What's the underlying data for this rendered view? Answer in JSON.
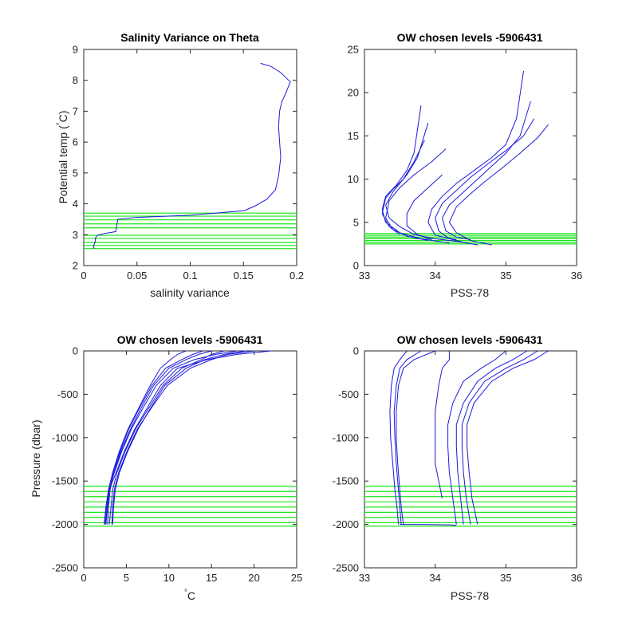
{
  "figure": {
    "line_color": "#1a1adb",
    "level_color": "#19e619"
  },
  "chart_data": [
    {
      "type": "line",
      "title": "Salinity Variance on Theta",
      "xlabel": "salinity variance",
      "ylabel": "Potential temp (°C)",
      "xlim": [
        0,
        0.2
      ],
      "ylim": [
        2,
        9
      ],
      "xticks": [
        "0",
        "0.05",
        "0.1",
        "0.15",
        "0.2"
      ],
      "yticks": [
        "2",
        "3",
        "4",
        "5",
        "6",
        "7",
        "8",
        "9"
      ],
      "series": [
        {
          "x": [
            0.01,
            0.009,
            0.01,
            0.011,
            0.011,
            0.013,
            0.02,
            0.03,
            0.031,
            0.032,
            0.05,
            0.1,
            0.151,
            0.162,
            0.172,
            0.18,
            0.183,
            0.185,
            0.184,
            0.183,
            0.184,
            0.186,
            0.19,
            0.194,
            0.185,
            0.176,
            0.166
          ],
          "y": [
            2.55,
            2.62,
            2.7,
            2.8,
            2.9,
            2.98,
            3.04,
            3.1,
            3.3,
            3.5,
            3.56,
            3.63,
            3.78,
            3.95,
            4.15,
            4.45,
            4.9,
            5.5,
            6.0,
            6.5,
            7.0,
            7.3,
            7.6,
            7.95,
            8.25,
            8.45,
            8.55
          ]
        }
      ],
      "levels": [
        2.55,
        2.65,
        2.75,
        2.88,
        2.98,
        3.22,
        3.35,
        3.48,
        3.6,
        3.7
      ],
      "level_range": [
        0.0,
        0.2
      ]
    },
    {
      "type": "line",
      "title": "OW chosen levels -5906431",
      "xlabel": "PSS-78",
      "ylabel": "",
      "xlim": [
        33,
        36
      ],
      "ylim": [
        0,
        25
      ],
      "xticks": [
        "33",
        "34",
        "35",
        "36"
      ],
      "yticks": [
        "0",
        "5",
        "10",
        "15",
        "20",
        "25"
      ],
      "series": [
        {
          "x": [
            34.6,
            34.3,
            34.0,
            33.7,
            33.5,
            33.35,
            33.3,
            33.4,
            33.5,
            33.6,
            33.75,
            33.9
          ],
          "y": [
            2.4,
            2.8,
            3.1,
            3.6,
            4.5,
            5.5,
            7.0,
            8.5,
            9.5,
            10.5,
            12.5,
            16.5
          ]
        },
        {
          "x": [
            34.2,
            33.8,
            33.5,
            33.3,
            33.25,
            33.3,
            33.45,
            33.6,
            33.7,
            33.8
          ],
          "y": [
            2.6,
            3.1,
            3.8,
            5.0,
            6.5,
            8.0,
            9.3,
            11.0,
            13.0,
            18.5
          ]
        },
        {
          "x": [
            33.9,
            33.6,
            33.4,
            33.3,
            33.35,
            33.5,
            33.7,
            33.95,
            34.15
          ],
          "y": [
            2.9,
            3.4,
            4.2,
            5.5,
            7.5,
            9.0,
            10.5,
            12.0,
            13.5
          ]
        },
        {
          "x": [
            33.5,
            33.35,
            33.25,
            33.3,
            33.4,
            33.55,
            33.7,
            33.85
          ],
          "y": [
            3.6,
            4.5,
            6.0,
            7.8,
            8.8,
            10.0,
            12.0,
            14.5
          ]
        },
        {
          "x": [
            34.5,
            34.3,
            34.15,
            34.1,
            34.2,
            34.4,
            34.6,
            34.8,
            35.0,
            35.2,
            35.35
          ],
          "y": [
            3.0,
            3.3,
            4.0,
            5.5,
            7.0,
            8.5,
            10.0,
            11.5,
            13.0,
            15.0,
            19.0
          ]
        },
        {
          "x": [
            34.3,
            34.0,
            33.9,
            33.95,
            34.1,
            34.3,
            34.55,
            34.8,
            35.0,
            35.15,
            35.25
          ],
          "y": [
            3.0,
            3.5,
            5.0,
            6.5,
            8.0,
            9.5,
            11.0,
            12.5,
            14.0,
            17.0,
            22.5
          ]
        },
        {
          "x": [
            34.8,
            34.5,
            34.3,
            34.2,
            34.3,
            34.5,
            34.7,
            34.95,
            35.2,
            35.45,
            35.6
          ],
          "y": [
            2.4,
            2.9,
            3.8,
            5.0,
            6.8,
            8.3,
            9.7,
            11.3,
            13.0,
            14.8,
            16.3
          ]
        },
        {
          "x": [
            34.4,
            34.2,
            34.05,
            34.0,
            34.1,
            34.3,
            34.5,
            34.75,
            35.0,
            35.25,
            35.4
          ],
          "y": [
            2.7,
            3.1,
            4.0,
            5.5,
            7.2,
            8.7,
            10.2,
            11.8,
            13.3,
            15.0,
            17.0
          ]
        },
        {
          "x": [
            33.95,
            33.75,
            33.6,
            33.6,
            33.7,
            33.9,
            34.1
          ],
          "y": [
            3.0,
            3.6,
            4.6,
            6.0,
            7.5,
            9.0,
            10.5
          ]
        }
      ],
      "levels": [
        2.5,
        2.7,
        2.9,
        3.1,
        3.3,
        3.5,
        3.7
      ],
      "level_range": [
        33,
        36
      ]
    },
    {
      "type": "line",
      "title": "OW chosen levels -5906431",
      "xlabel": "°C",
      "ylabel": "Pressure (dbar)",
      "xlim": [
        0,
        25
      ],
      "ylim": [
        -2500,
        0
      ],
      "xticks": [
        "0",
        "5",
        "10",
        "15",
        "20",
        "25"
      ],
      "yticks": [
        "-2500",
        "-2000",
        "-1500",
        "-1000",
        "-500",
        "0"
      ],
      "series": [
        {
          "x": [
            22.0,
            18.0,
            14.5,
            11.0,
            9.0,
            7.5,
            6.0,
            4.8,
            3.8,
            3.0,
            2.6,
            2.4
          ],
          "y": [
            0,
            -40,
            -100,
            -200,
            -400,
            -650,
            -900,
            -1150,
            -1400,
            -1600,
            -1800,
            -2000
          ]
        },
        {
          "x": [
            18.0,
            15.5,
            13.0,
            10.5,
            8.5,
            7.0,
            5.6,
            4.5,
            3.6,
            3.0,
            2.8,
            2.6
          ],
          "y": [
            0,
            -40,
            -100,
            -200,
            -400,
            -650,
            -900,
            -1150,
            -1400,
            -1600,
            -1800,
            -2000
          ]
        },
        {
          "x": [
            15.0,
            13.5,
            12.0,
            10.0,
            8.2,
            6.8,
            5.5,
            4.4,
            3.5,
            3.1,
            2.9,
            2.8
          ],
          "y": [
            0,
            -40,
            -100,
            -200,
            -400,
            -650,
            -900,
            -1150,
            -1400,
            -1600,
            -1800,
            -2000
          ]
        },
        {
          "x": [
            20.0,
            17.0,
            15.0,
            12.5,
            9.8,
            8.0,
            6.3,
            5.1,
            4.1,
            3.6,
            3.4,
            3.3
          ],
          "y": [
            0,
            -40,
            -100,
            -200,
            -400,
            -650,
            -900,
            -1150,
            -1400,
            -1600,
            -1800,
            -2000
          ]
        },
        {
          "x": [
            12.0,
            11.0,
            10.2,
            9.0,
            7.8,
            6.5,
            5.2,
            4.2,
            3.4,
            2.9,
            2.6,
            2.5
          ],
          "y": [
            0,
            -40,
            -100,
            -200,
            -400,
            -650,
            -900,
            -1150,
            -1400,
            -1600,
            -1800,
            -2000
          ]
        },
        {
          "x": [
            16.5,
            15.0,
            13.8,
            11.5,
            9.3,
            7.7,
            6.1,
            4.9,
            3.9,
            3.4,
            3.2,
            3.0
          ],
          "y": [
            0,
            -40,
            -100,
            -200,
            -400,
            -650,
            -900,
            -1150,
            -1400,
            -1600,
            -1800,
            -2000
          ]
        },
        {
          "x": [
            14.0,
            12.8,
            11.5,
            9.6,
            8.0,
            6.6,
            5.3,
            4.3,
            3.5,
            3.0,
            2.7,
            2.6
          ],
          "y": [
            0,
            -40,
            -100,
            -200,
            -400,
            -650,
            -900,
            -1150,
            -1400,
            -1600,
            -1800,
            -2000
          ]
        },
        {
          "x": [
            19.0,
            16.5,
            14.2,
            12.0,
            9.5,
            7.9,
            6.4,
            5.2,
            4.2,
            3.7,
            3.5,
            3.4
          ],
          "y": [
            0,
            -40,
            -100,
            -200,
            -400,
            -650,
            -900,
            -1150,
            -1400,
            -1600,
            -1800,
            -2000
          ]
        }
      ],
      "levels": [
        -1560,
        -1620,
        -1680,
        -1740,
        -1800,
        -1860,
        -1920,
        -1980,
        -2020
      ],
      "level_range": [
        0,
        25
      ]
    },
    {
      "type": "line",
      "title": "OW chosen levels -5906431",
      "xlabel": "PSS-78",
      "ylabel": "",
      "xlim": [
        33,
        36
      ],
      "ylim": [
        -2500,
        0
      ],
      "xticks": [
        "33",
        "34",
        "35",
        "36"
      ],
      "yticks": [
        "-2500",
        "-2000",
        "-1500",
        "-1000",
        "-500",
        "0"
      ],
      "series": [
        {
          "x": [
            33.8,
            33.6,
            33.5,
            33.45,
            33.42,
            33.43,
            33.45,
            33.48,
            33.5,
            33.52
          ],
          "y": [
            0,
            -100,
            -200,
            -400,
            -700,
            -1000,
            -1300,
            -1600,
            -1800,
            -2000
          ]
        },
        {
          "x": [
            34.0,
            33.7,
            33.55,
            33.48,
            33.45,
            33.45,
            33.47,
            33.5,
            33.52,
            33.55
          ],
          "y": [
            0,
            -100,
            -200,
            -400,
            -700,
            -1000,
            -1300,
            -1600,
            -1800,
            -2000
          ]
        },
        {
          "x": [
            33.6,
            33.5,
            33.42,
            33.38,
            33.36,
            33.37,
            33.4,
            33.43,
            33.46,
            33.48
          ],
          "y": [
            0,
            -100,
            -200,
            -400,
            -700,
            -1000,
            -1300,
            -1600,
            -1800,
            -2000
          ]
        },
        {
          "x": [
            34.2,
            34.2,
            34.1,
            34.05,
            34.0,
            34.0,
            34.0,
            34.0,
            34.05,
            34.1
          ],
          "y": [
            0,
            -100,
            -200,
            -400,
            -700,
            -900,
            -1100,
            -1300,
            -1500,
            -1700
          ]
        },
        {
          "x": [
            35.6,
            35.4,
            35.1,
            34.8,
            34.55,
            34.45,
            34.45,
            34.48,
            34.52,
            34.6
          ],
          "y": [
            0,
            -100,
            -200,
            -350,
            -600,
            -850,
            -1100,
            -1400,
            -1700,
            -2000
          ]
        },
        {
          "x": [
            35.3,
            35.1,
            34.85,
            34.6,
            34.4,
            34.3,
            34.3,
            34.32,
            34.36,
            34.4
          ],
          "y": [
            0,
            -100,
            -200,
            -350,
            -600,
            -850,
            -1100,
            -1400,
            -1700,
            -2000
          ]
        },
        {
          "x": [
            35.0,
            34.85,
            34.65,
            34.4,
            34.25,
            34.18,
            34.18,
            34.2,
            34.25,
            34.3
          ],
          "y": [
            0,
            -100,
            -200,
            -350,
            -600,
            -850,
            -1100,
            -1400,
            -1700,
            -2000
          ]
        },
        {
          "x": [
            35.45,
            35.25,
            35.0,
            34.7,
            34.48,
            34.38,
            34.38,
            34.4,
            34.44,
            34.5
          ],
          "y": [
            0,
            -100,
            -200,
            -350,
            -600,
            -850,
            -1100,
            -1400,
            -1700,
            -2000
          ]
        },
        {
          "x": [
            33.5,
            33.8,
            34.2,
            34.3
          ],
          "y": [
            -2000,
            -2000,
            -2005,
            -2010
          ]
        }
      ],
      "levels": [
        -1560,
        -1620,
        -1680,
        -1740,
        -1800,
        -1860,
        -1920,
        -1980,
        -2020
      ],
      "level_range": [
        33,
        36
      ]
    }
  ]
}
